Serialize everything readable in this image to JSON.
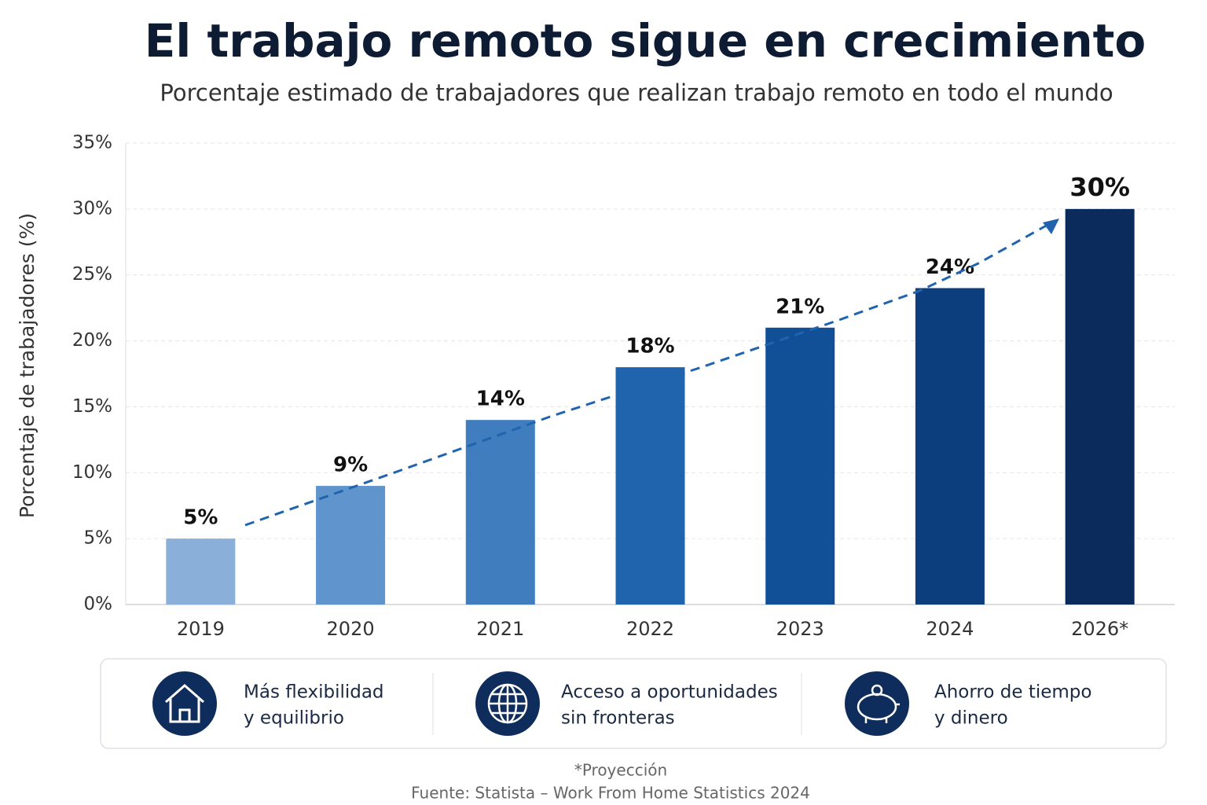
{
  "chart_data": {
    "type": "bar",
    "title": "El trabajo remoto sigue en crecimiento",
    "subtitle": "Porcentaje estimado de trabajadores que realizan trabajo remoto en todo el mundo",
    "y_label": "Porcentaje de trabajadores (%)",
    "categories": [
      "2019",
      "2020",
      "2021",
      "2022",
      "2023",
      "2024",
      "2026*"
    ],
    "values": [
      5,
      9,
      14,
      18,
      21,
      24,
      30
    ],
    "value_labels": [
      "5%",
      "9%",
      "14%",
      "18%",
      "21%",
      "24%",
      "30%"
    ],
    "colors": [
      "#8ab0da",
      "#5f95cc",
      "#3f7dbe",
      "#1f64ad",
      "#114f97",
      "#0c3d7c",
      "#0a2b5c"
    ],
    "ylim": [
      0,
      35
    ],
    "yticks": [
      {
        "value": 0,
        "label": "0%"
      },
      {
        "value": 5,
        "label": "5%"
      },
      {
        "value": 10,
        "label": "10%"
      },
      {
        "value": 15,
        "label": "15%"
      },
      {
        "value": 20,
        "label": "20%"
      },
      {
        "value": 25,
        "label": "25%"
      },
      {
        "value": 30,
        "label": "30%"
      },
      {
        "value": 35,
        "label": "35%"
      }
    ],
    "grid": true
  },
  "features": [
    {
      "lines": [
        "Más flexibilidad",
        "y equilibrio"
      ]
    },
    {
      "lines": [
        "Acceso a oportunidades",
        "sin fronteras"
      ]
    },
    {
      "lines": [
        "Ahorro de tiempo",
        "y dinero"
      ]
    }
  ],
  "footnote": "*Proyección",
  "source": "Fuente: Statista – Work From Home Statistics 2024"
}
